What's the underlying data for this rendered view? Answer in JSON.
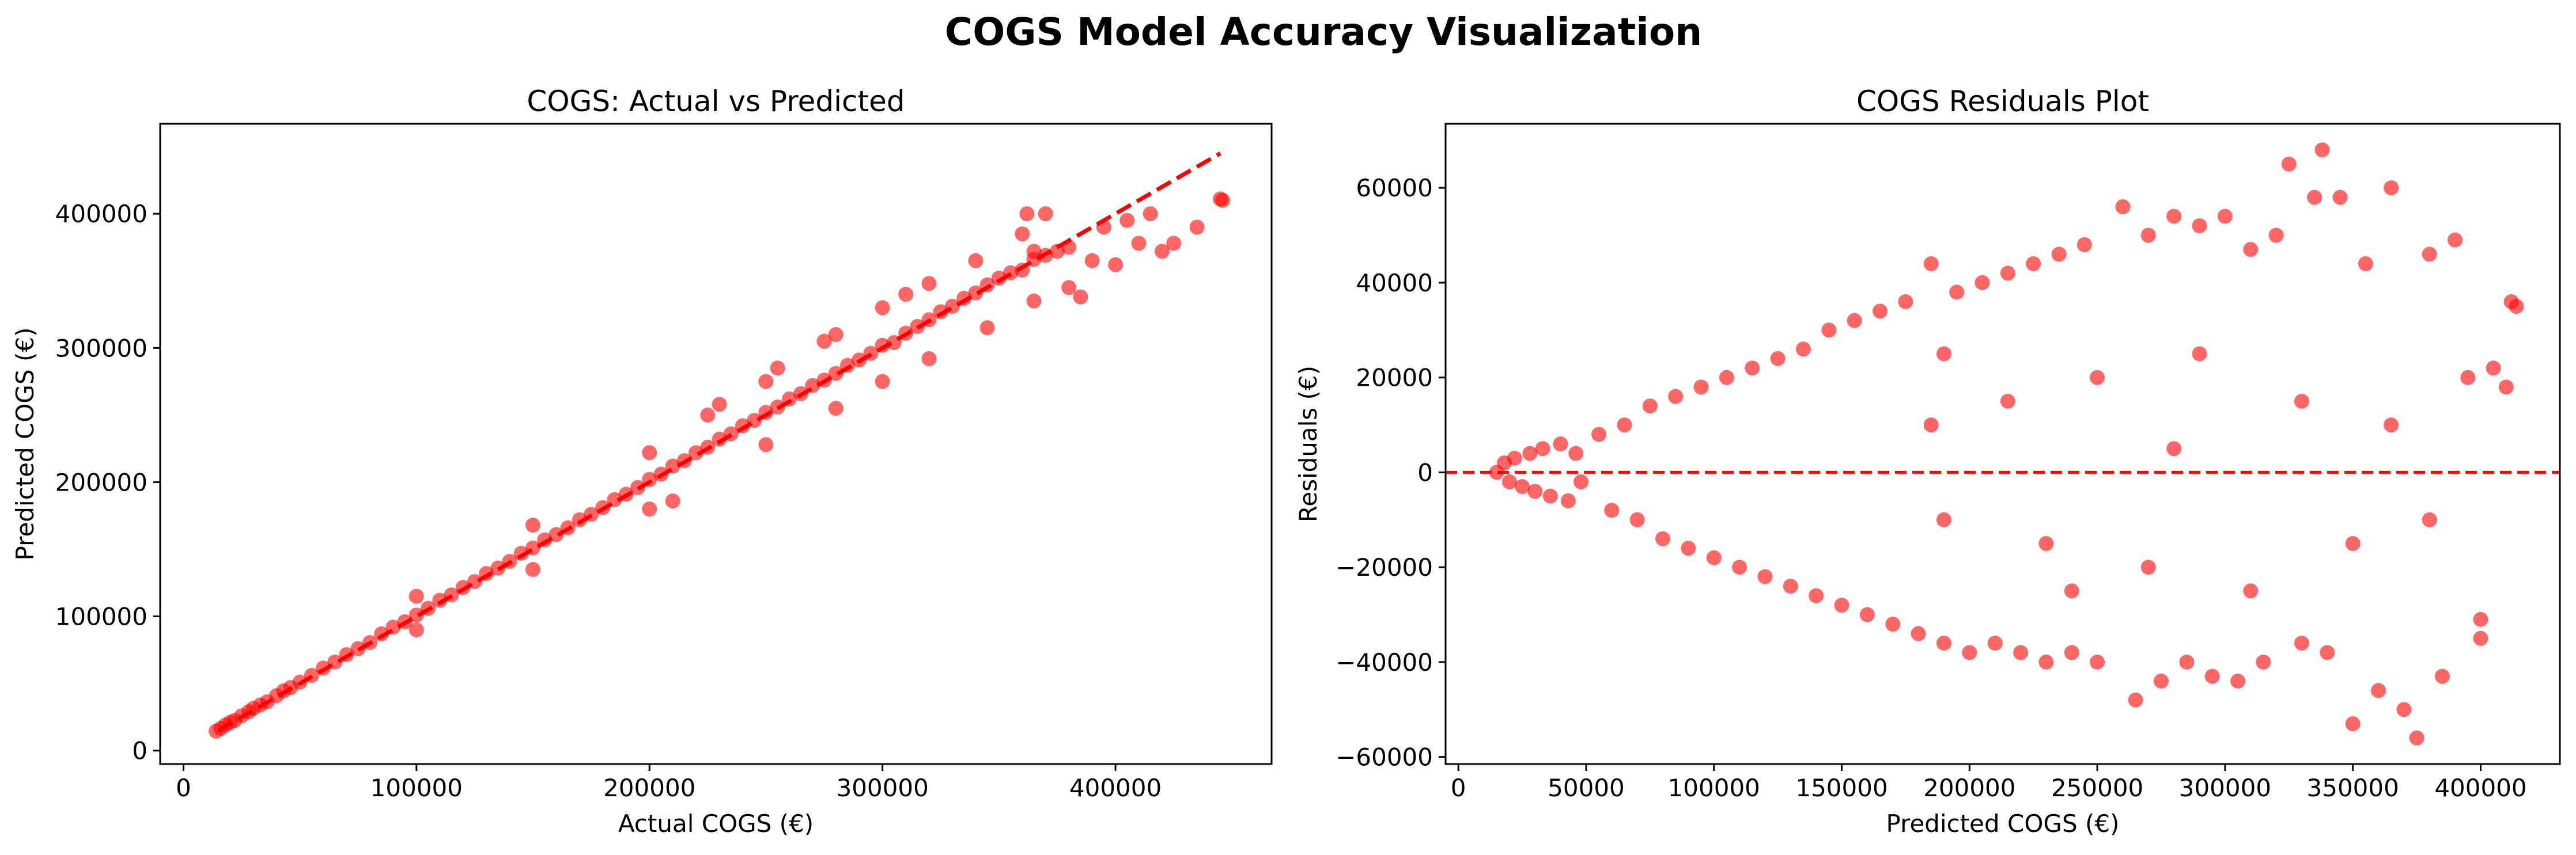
{
  "figure": {
    "suptitle": "COGS Model Accuracy Visualization"
  },
  "colors": {
    "marker": "#ff0000",
    "reference_line": "#ff0000",
    "axes": "#000000",
    "background": "#ffffff"
  },
  "chart_data": [
    {
      "type": "scatter",
      "title": "COGS: Actual vs Predicted",
      "xlabel": "Actual COGS (€)",
      "ylabel": "Predicted COGS (€)",
      "xlim": [
        -10000,
        467000
      ],
      "ylim": [
        -10000,
        467000
      ],
      "xticks": [
        0,
        100000,
        200000,
        300000,
        400000
      ],
      "yticks": [
        0,
        100000,
        200000,
        300000,
        400000
      ],
      "grid": false,
      "reference_line": {
        "style": "dashed",
        "from": [
          15000,
          15000
        ],
        "to": [
          445000,
          445000
        ]
      },
      "series": [
        {
          "marker": "circle",
          "alpha": 0.6,
          "points": [
            [
              14000,
              14500
            ],
            [
              16000,
              16500
            ],
            [
              18000,
              19000
            ],
            [
              20000,
              21000
            ],
            [
              22000,
              22500
            ],
            [
              25000,
              26000
            ],
            [
              28000,
              29000
            ],
            [
              30000,
              31500
            ],
            [
              33000,
              34000
            ],
            [
              36000,
              36500
            ],
            [
              40000,
              41000
            ],
            [
              43000,
              44500
            ],
            [
              46000,
              47000
            ],
            [
              50000,
              51000
            ],
            [
              55000,
              56000
            ],
            [
              60000,
              61500
            ],
            [
              65000,
              66000
            ],
            [
              70000,
              71500
            ],
            [
              75000,
              76000
            ],
            [
              80000,
              80500
            ],
            [
              85000,
              87000
            ],
            [
              90000,
              92000
            ],
            [
              95000,
              96000
            ],
            [
              100000,
              101000
            ],
            [
              105000,
              106000
            ],
            [
              110000,
              112000
            ],
            [
              115000,
              116000
            ],
            [
              120000,
              121500
            ],
            [
              125000,
              126000
            ],
            [
              130000,
              132000
            ],
            [
              135000,
              136000
            ],
            [
              140000,
              141000
            ],
            [
              145000,
              147000
            ],
            [
              150000,
              151000
            ],
            [
              155000,
              157000
            ],
            [
              160000,
              161000
            ],
            [
              165000,
              166000
            ],
            [
              170000,
              172000
            ],
            [
              175000,
              176000
            ],
            [
              180000,
              181000
            ],
            [
              185000,
              187000
            ],
            [
              190000,
              191000
            ],
            [
              195000,
              196000
            ],
            [
              200000,
              202000
            ],
            [
              205000,
              206000
            ],
            [
              210000,
              212000
            ],
            [
              215000,
              216000
            ],
            [
              220000,
              222000
            ],
            [
              225000,
              226000
            ],
            [
              230000,
              232000
            ],
            [
              235000,
              236000
            ],
            [
              240000,
              242000
            ],
            [
              245000,
              246000
            ],
            [
              250000,
              252000
            ],
            [
              255000,
              256000
            ],
            [
              260000,
              262000
            ],
            [
              265000,
              266000
            ],
            [
              270000,
              272000
            ],
            [
              275000,
              276000
            ],
            [
              280000,
              281000
            ],
            [
              285000,
              287000
            ],
            [
              290000,
              291000
            ],
            [
              295000,
              296000
            ],
            [
              300000,
              302000
            ],
            [
              305000,
              304000
            ],
            [
              310000,
              311000
            ],
            [
              315000,
              316000
            ],
            [
              320000,
              321000
            ],
            [
              325000,
              327000
            ],
            [
              330000,
              331000
            ],
            [
              335000,
              337000
            ],
            [
              340000,
              341000
            ],
            [
              345000,
              347000
            ],
            [
              350000,
              352000
            ],
            [
              355000,
              356000
            ],
            [
              360000,
              358000
            ],
            [
              365000,
              366000
            ],
            [
              370000,
              369000
            ],
            [
              375000,
              372000
            ],
            [
              380000,
              375000
            ],
            [
              100000,
              115000
            ],
            [
              100000,
              90000
            ],
            [
              150000,
              168000
            ],
            [
              150000,
              135000
            ],
            [
              200000,
              222000
            ],
            [
              200000,
              180000
            ],
            [
              250000,
              275000
            ],
            [
              250000,
              228000
            ],
            [
              300000,
              330000
            ],
            [
              300000,
              275000
            ],
            [
              230000,
              258000
            ],
            [
              210000,
              186000
            ],
            [
              275000,
              305000
            ],
            [
              280000,
              255000
            ],
            [
              320000,
              348000
            ],
            [
              320000,
              292000
            ],
            [
              340000,
              365000
            ],
            [
              345000,
              315000
            ],
            [
              360000,
              385000
            ],
            [
              365000,
              335000
            ],
            [
              362000,
              400000
            ],
            [
              365000,
              372000
            ],
            [
              370000,
              400000
            ],
            [
              380000,
              345000
            ],
            [
              385000,
              338000
            ],
            [
              390000,
              365000
            ],
            [
              395000,
              390000
            ],
            [
              400000,
              362000
            ],
            [
              405000,
              395000
            ],
            [
              410000,
              378000
            ],
            [
              415000,
              400000
            ],
            [
              420000,
              372000
            ],
            [
              425000,
              378000
            ],
            [
              435000,
              390000
            ],
            [
              445000,
              411000
            ],
            [
              446000,
              410000
            ],
            [
              310000,
              340000
            ],
            [
              280000,
              310000
            ],
            [
              255000,
              285000
            ],
            [
              225000,
              250000
            ]
          ]
        }
      ]
    },
    {
      "type": "scatter",
      "title": "COGS Residuals Plot",
      "xlabel": "Predicted COGS (€)",
      "ylabel": "Residuals (€)",
      "xlim": [
        -5000,
        431000
      ],
      "ylim": [
        -61500,
        73500
      ],
      "xticks": [
        0,
        50000,
        100000,
        150000,
        200000,
        250000,
        300000,
        350000,
        400000
      ],
      "yticks": [
        -60000,
        -40000,
        -20000,
        0,
        20000,
        40000,
        60000
      ],
      "grid": false,
      "reference_line": {
        "style": "dashed",
        "y": 0
      },
      "series": [
        {
          "marker": "circle",
          "alpha": 0.6,
          "points": [
            [
              15000,
              0
            ],
            [
              18000,
              2000
            ],
            [
              20000,
              -2000
            ],
            [
              22000,
              3000
            ],
            [
              25000,
              -3000
            ],
            [
              28000,
              4000
            ],
            [
              30000,
              -4000
            ],
            [
              33000,
              5000
            ],
            [
              36000,
              -5000
            ],
            [
              40000,
              6000
            ],
            [
              43000,
              -6000
            ],
            [
              46000,
              4000
            ],
            [
              48000,
              -2000
            ],
            [
              55000,
              8000
            ],
            [
              60000,
              -8000
            ],
            [
              65000,
              10000
            ],
            [
              70000,
              -10000
            ],
            [
              75000,
              14000
            ],
            [
              80000,
              -14000
            ],
            [
              85000,
              16000
            ],
            [
              90000,
              -16000
            ],
            [
              95000,
              18000
            ],
            [
              100000,
              -18000
            ],
            [
              105000,
              20000
            ],
            [
              110000,
              -20000
            ],
            [
              115000,
              22000
            ],
            [
              120000,
              -22000
            ],
            [
              125000,
              24000
            ],
            [
              130000,
              -24000
            ],
            [
              135000,
              26000
            ],
            [
              140000,
              -26000
            ],
            [
              145000,
              30000
            ],
            [
              150000,
              -28000
            ],
            [
              155000,
              32000
            ],
            [
              160000,
              -30000
            ],
            [
              165000,
              34000
            ],
            [
              170000,
              -32000
            ],
            [
              175000,
              36000
            ],
            [
              180000,
              -34000
            ],
            [
              185000,
              44000
            ],
            [
              190000,
              -36000
            ],
            [
              195000,
              38000
            ],
            [
              200000,
              -38000
            ],
            [
              205000,
              40000
            ],
            [
              210000,
              -36000
            ],
            [
              215000,
              42000
            ],
            [
              220000,
              -38000
            ],
            [
              225000,
              44000
            ],
            [
              230000,
              -40000
            ],
            [
              235000,
              46000
            ],
            [
              240000,
              -38000
            ],
            [
              245000,
              48000
            ],
            [
              250000,
              -40000
            ],
            [
              260000,
              56000
            ],
            [
              265000,
              -48000
            ],
            [
              270000,
              50000
            ],
            [
              275000,
              -44000
            ],
            [
              280000,
              54000
            ],
            [
              285000,
              -40000
            ],
            [
              290000,
              52000
            ],
            [
              295000,
              -43000
            ],
            [
              300000,
              54000
            ],
            [
              305000,
              -44000
            ],
            [
              310000,
              47000
            ],
            [
              315000,
              -40000
            ],
            [
              320000,
              50000
            ],
            [
              325000,
              65000
            ],
            [
              330000,
              -36000
            ],
            [
              335000,
              58000
            ],
            [
              338000,
              68000
            ],
            [
              340000,
              -38000
            ],
            [
              345000,
              58000
            ],
            [
              350000,
              -53000
            ],
            [
              355000,
              44000
            ],
            [
              360000,
              -46000
            ],
            [
              365000,
              60000
            ],
            [
              370000,
              -50000
            ],
            [
              375000,
              -56000
            ],
            [
              380000,
              46000
            ],
            [
              385000,
              -43000
            ],
            [
              390000,
              49000
            ],
            [
              395000,
              20000
            ],
            [
              400000,
              -31000
            ],
            [
              400000,
              -35000
            ],
            [
              405000,
              22000
            ],
            [
              410000,
              18000
            ],
            [
              412000,
              36000
            ],
            [
              414000,
              35000
            ],
            [
              185000,
              10000
            ],
            [
              190000,
              -10000
            ],
            [
              215000,
              15000
            ],
            [
              230000,
              -15000
            ],
            [
              250000,
              20000
            ],
            [
              270000,
              -20000
            ],
            [
              290000,
              25000
            ],
            [
              310000,
              -25000
            ],
            [
              330000,
              15000
            ],
            [
              350000,
              -15000
            ],
            [
              365000,
              10000
            ],
            [
              380000,
              -10000
            ],
            [
              190000,
              25000
            ],
            [
              240000,
              -25000
            ],
            [
              280000,
              5000
            ]
          ]
        }
      ]
    }
  ]
}
